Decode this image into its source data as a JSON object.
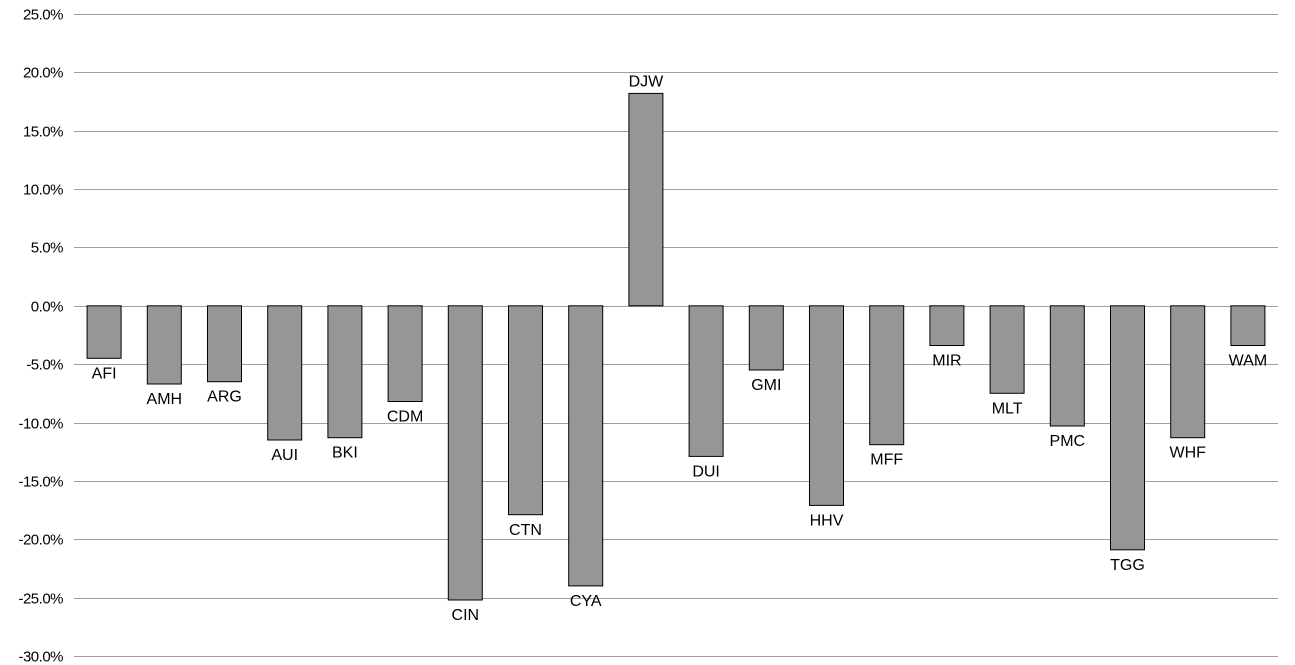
{
  "chart_data": {
    "type": "bar",
    "title": "",
    "xlabel": "",
    "ylabel": "",
    "ylim": [
      -30,
      25
    ],
    "y_ticks": [
      25,
      20,
      15,
      10,
      5,
      0,
      -5,
      -10,
      -15,
      -20,
      -25,
      -30
    ],
    "y_tick_labels": [
      "25.0%",
      "20.0%",
      "15.0%",
      "10.0%",
      "5.0%",
      "0.0%",
      "-5.0%",
      "-10.0%",
      "-15.0%",
      "-20.0%",
      "-25.0%",
      "-30.0%"
    ],
    "grid": true,
    "legend": "none",
    "bar_color": "#969696",
    "categories": [
      "AFI",
      "AMH",
      "ARG",
      "AUI",
      "BKI",
      "CDM",
      "CIN",
      "CTN",
      "CYA",
      "DJW",
      "DUI",
      "GMI",
      "HHV",
      "MFF",
      "MIR",
      "MLT",
      "PMC",
      "TGG",
      "WHF",
      "WAM"
    ],
    "values": [
      -4.5,
      -6.7,
      -6.5,
      -11.5,
      -11.3,
      -8.2,
      -25.2,
      -17.9,
      -24.0,
      18.2,
      -12.9,
      -5.5,
      -17.1,
      -11.9,
      -3.4,
      -7.5,
      -10.3,
      -20.9,
      -11.3,
      -3.4
    ]
  }
}
